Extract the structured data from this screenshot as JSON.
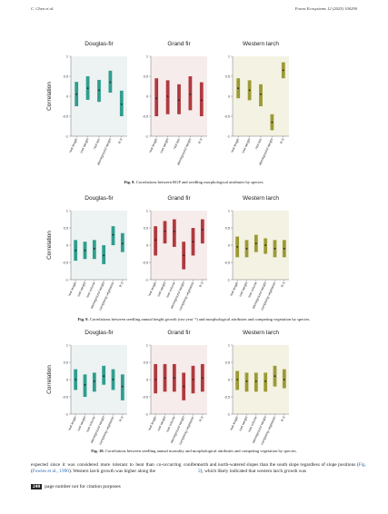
{
  "header": {
    "left": "C. Chen et al.",
    "right": "Forest Ecosystems 12 (2025) 100290"
  },
  "figures": [
    {
      "y_axis_label": "Correlation",
      "ylim": [
        -1,
        1
      ],
      "yticks": [
        1,
        0.5,
        0,
        -0.5,
        -1
      ],
      "categories": [
        "root length",
        "root weight",
        "root tips",
        "aboveground weight",
        "R:S"
      ],
      "panels": [
        {
          "title": "Douglas-fir",
          "color": "#2f9e8f",
          "background": "#edf2f2",
          "estimates": [
            0.05,
            0.2,
            0.15,
            0.35,
            -0.2
          ],
          "lower": [
            -0.25,
            -0.09,
            -0.14,
            0.09,
            -0.5
          ],
          "upper": [
            0.36,
            0.5,
            0.41,
            0.64,
            0.14
          ]
        },
        {
          "title": "Grand fir",
          "color": "#b03a3f",
          "background": "#f6ecec",
          "estimates": [
            -0.05,
            0,
            -0.1,
            0.05,
            -0.1
          ],
          "lower": [
            -0.5,
            -0.45,
            -0.45,
            -0.35,
            -0.5
          ],
          "upper": [
            0.45,
            0.4,
            0.3,
            0.5,
            0.35
          ]
        },
        {
          "title": "Western larch",
          "color": "#9c9a35",
          "background": "#f4f2e3",
          "estimates": [
            0.2,
            0.15,
            0.05,
            -0.65,
            0.65
          ],
          "lower": [
            -0.05,
            -0.1,
            -0.25,
            -0.85,
            0.45
          ],
          "upper": [
            0.45,
            0.4,
            0.3,
            -0.45,
            0.85
          ]
        }
      ],
      "caption_label": "Fig. 8.",
      "caption": "Correlations between RGP and seedling morphological attributes by species."
    },
    {
      "y_axis_label": "Correlation",
      "ylim": [
        -1,
        1
      ],
      "yticks": [
        1,
        0.5,
        0,
        -0.5,
        -1
      ],
      "categories": [
        "root length",
        "root weight",
        "root volume",
        "aboveground weight",
        "competing vegetation",
        "R:S"
      ],
      "panels": [
        {
          "title": "Douglas-fir",
          "color": "#2f9e8f",
          "background": "#edf2f2",
          "estimates": [
            -0.15,
            -0.15,
            -0.1,
            -0.3,
            0.3,
            0.05
          ],
          "lower": [
            -0.45,
            -0.4,
            -0.4,
            -0.55,
            0,
            -0.2
          ],
          "upper": [
            0.15,
            0.1,
            0.15,
            0,
            0.55,
            0.35
          ]
        },
        {
          "title": "Grand fir",
          "color": "#b03a3f",
          "background": "#f6ecec",
          "estimates": [
            0.15,
            0.4,
            0.4,
            -0.3,
            0.1,
            0.45
          ],
          "lower": [
            -0.3,
            0.05,
            -0.05,
            -0.7,
            -0.3,
            0.05
          ],
          "upper": [
            0.55,
            0.7,
            0.75,
            0.1,
            0.5,
            0.75
          ]
        },
        {
          "title": "Western larch",
          "color": "#9c9a35",
          "background": "#f4f2e3",
          "estimates": [
            -0.05,
            -0.1,
            0.05,
            0,
            -0.1,
            -0.1
          ],
          "lower": [
            -0.35,
            -0.35,
            -0.2,
            -0.25,
            -0.35,
            -0.35
          ],
          "upper": [
            0.25,
            0.15,
            0.3,
            0.2,
            0.15,
            0.15
          ]
        }
      ],
      "caption_label": "Fig. 9.",
      "caption": "Correlations between seedling annual height growth (cm·year⁻¹) and morphological attributes and competing vegetation by species."
    },
    {
      "y_axis_label": "Correlation",
      "ylim": [
        -1,
        1
      ],
      "yticks": [
        1,
        0.5,
        0,
        -0.5,
        -1
      ],
      "categories": [
        "root length",
        "root weight",
        "root volume",
        "aboveground weight",
        "competing vegetation",
        "R:S"
      ],
      "panels": [
        {
          "title": "Douglas-fir",
          "color": "#2f9e8f",
          "background": "#edf2f2",
          "estimates": [
            0,
            -0.15,
            -0.05,
            0.1,
            0,
            -0.2
          ],
          "lower": [
            -0.3,
            -0.5,
            -0.35,
            -0.15,
            -0.3,
            -0.6
          ],
          "upper": [
            0.3,
            0.15,
            0.2,
            0.4,
            0.3,
            0.15
          ]
        },
        {
          "title": "Grand fir",
          "color": "#b03a3f",
          "background": "#f6ecec",
          "estimates": [
            0,
            0.05,
            0.05,
            -0.2,
            0,
            0.05
          ],
          "lower": [
            -0.4,
            -0.35,
            -0.35,
            -0.6,
            -0.4,
            -0.35
          ],
          "upper": [
            0.45,
            0.45,
            0.45,
            0.2,
            0.4,
            0.45
          ]
        },
        {
          "title": "Western larch",
          "color": "#9c9a35",
          "background": "#f4f2e3",
          "estimates": [
            0,
            -0.05,
            -0.05,
            -0.05,
            0.1,
            0
          ],
          "lower": [
            -0.3,
            -0.35,
            -0.35,
            -0.35,
            -0.2,
            -0.25
          ],
          "upper": [
            0.25,
            0.2,
            0.2,
            0.2,
            0.4,
            0.3
          ]
        }
      ],
      "caption_label": "Fig. 10.",
      "caption": "Correlations between seedling annual mortality and morphological attributes and competing vegetation by species."
    }
  ],
  "body": {
    "left": [
      "expected since it was considered more tolerant to heat than co-occurring conifers (",
      "Fowles et al., 1990",
      "). Western larch growth was higher along the"
    ],
    "right": [
      "north and north-watered slopes than the south slope regardless of slope positions (",
      "Fig. 2",
      "), which likely indicated that western larch growth was"
    ]
  },
  "footer": {
    "page": "240",
    "text": "page number not for citation purposes"
  }
}
